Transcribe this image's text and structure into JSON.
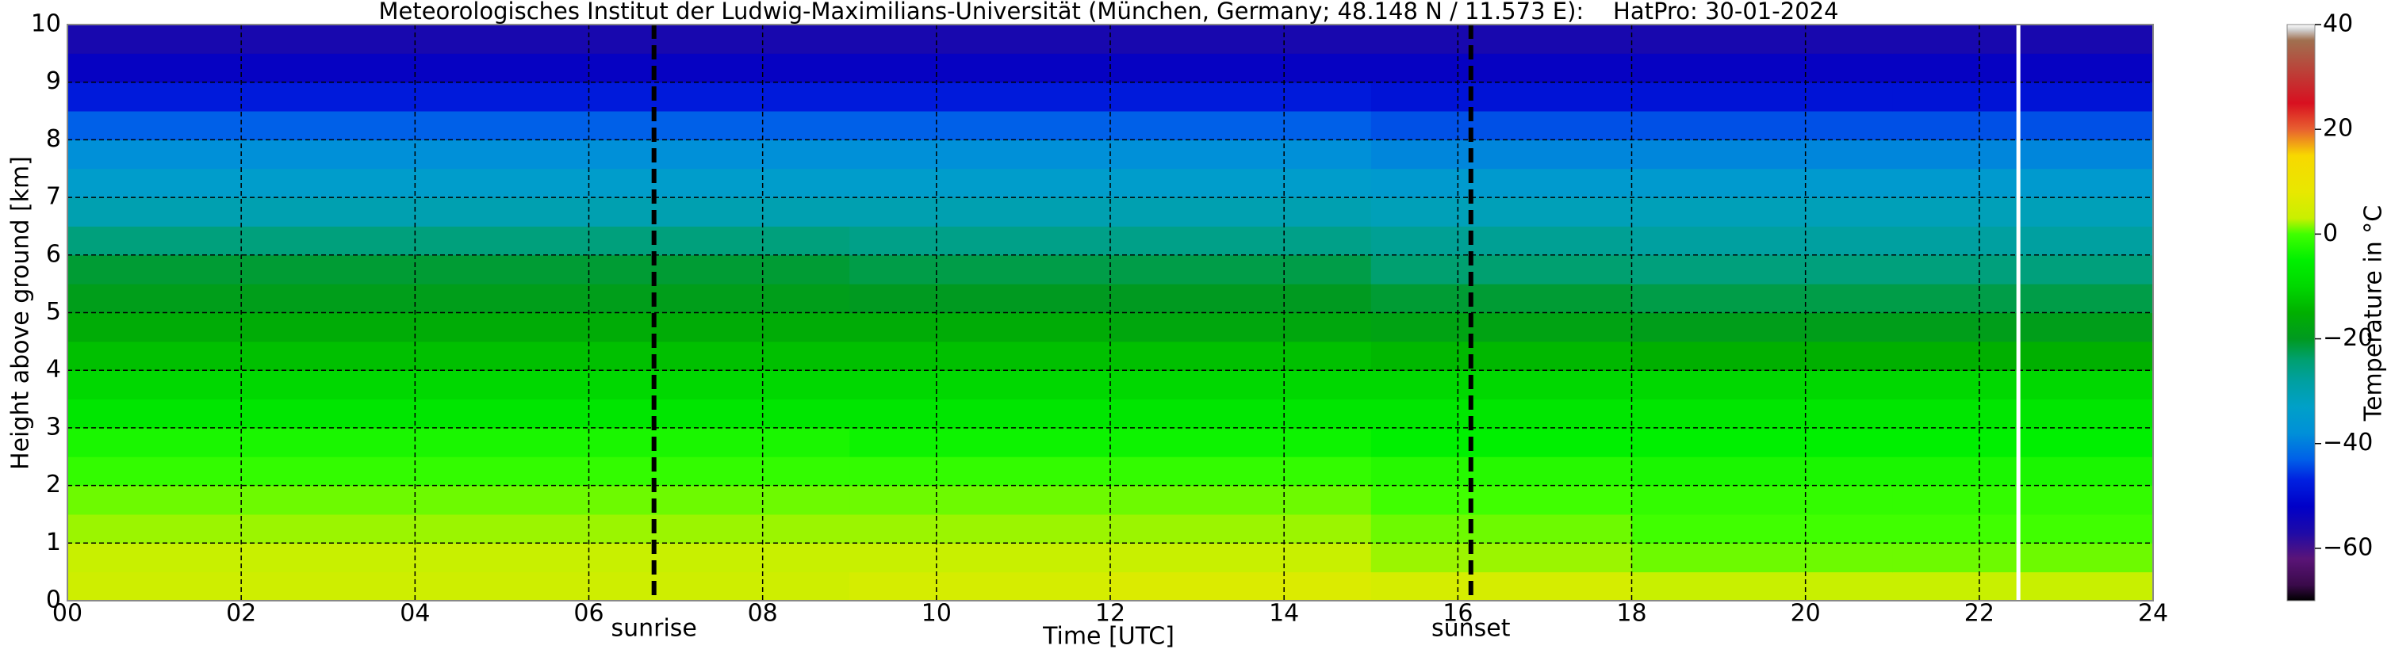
{
  "chart_data": {
    "type": "heatmap",
    "title": "Meteorologisches Institut der Ludwig-Maximilians-Universität (München, Germany; 48.148 N / 11.573 E):    HatPro: 30-01-2024",
    "xlabel": "Time [UTC]",
    "ylabel": "Height above ground [km]",
    "colorbar_label": "Temperature in °C",
    "xlim": [
      0,
      24
    ],
    "ylim": [
      0,
      10
    ],
    "clim": [
      -70,
      40
    ],
    "xticks": [
      {
        "value": 0,
        "label": "00"
      },
      {
        "value": 2,
        "label": "02"
      },
      {
        "value": 4,
        "label": "04"
      },
      {
        "value": 6,
        "label": "06"
      },
      {
        "value": 8,
        "label": "08"
      },
      {
        "value": 10,
        "label": "10"
      },
      {
        "value": 12,
        "label": "12"
      },
      {
        "value": 14,
        "label": "14"
      },
      {
        "value": 16,
        "label": "16"
      },
      {
        "value": 18,
        "label": "18"
      },
      {
        "value": 20,
        "label": "20"
      },
      {
        "value": 22,
        "label": "22"
      },
      {
        "value": 24,
        "label": "24"
      }
    ],
    "yticks": [
      0,
      1,
      2,
      3,
      4,
      5,
      6,
      7,
      8,
      9,
      10
    ],
    "cticks": [
      {
        "value": -60,
        "label": "−60"
      },
      {
        "value": -40,
        "label": "−40"
      },
      {
        "value": -20,
        "label": "−20"
      },
      0,
      20,
      40
    ],
    "grid": true,
    "colorscale": [
      [
        -70,
        "#000000"
      ],
      [
        -67,
        "#3a0a4a"
      ],
      [
        -62,
        "#5a1478"
      ],
      [
        -57,
        "#1e0aa8"
      ],
      [
        -52,
        "#0000c8"
      ],
      [
        -47,
        "#0020e0"
      ],
      [
        -43,
        "#0060e8"
      ],
      [
        -38,
        "#0090d8"
      ],
      [
        -33,
        "#00a0c8"
      ],
      [
        -28,
        "#00a0a0"
      ],
      [
        -24,
        "#00a070"
      ],
      [
        -20,
        "#009a20"
      ],
      [
        -15,
        "#00b000"
      ],
      [
        -10,
        "#00d800"
      ],
      [
        -5,
        "#00f000"
      ],
      [
        0,
        "#40ff00"
      ],
      [
        3,
        "#c8f000"
      ],
      [
        8,
        "#e8e800"
      ],
      [
        15,
        "#f8d800"
      ],
      [
        20,
        "#e86030"
      ],
      [
        25,
        "#d81020"
      ],
      [
        37,
        "#a07050"
      ],
      [
        39,
        "#d0d0d0"
      ],
      [
        40,
        "#ffffff"
      ]
    ],
    "xbins": [
      0,
      3,
      6,
      9,
      12,
      15,
      18,
      21,
      24
    ],
    "ybins": [
      0,
      0.5,
      1,
      1.5,
      2,
      2.5,
      3,
      3.5,
      4,
      4.5,
      5,
      5.5,
      6,
      6.5,
      7,
      7.5,
      8,
      8.5,
      9,
      9.5,
      10
    ],
    "z": [
      [
        4,
        4,
        4,
        5,
        6,
        5,
        3,
        3
      ],
      [
        3,
        3,
        3,
        3,
        3,
        2,
        1,
        1
      ],
      [
        2,
        2,
        2,
        2,
        2,
        1,
        0,
        0
      ],
      [
        1,
        1,
        1,
        1,
        1,
        0,
        -1,
        -1
      ],
      [
        -1,
        -1,
        -1,
        -1,
        -1,
        -2,
        -3,
        -3
      ],
      [
        -3,
        -3,
        -3,
        -4,
        -4,
        -5,
        -5,
        -5
      ],
      [
        -7,
        -7,
        -7,
        -7,
        -7,
        -7,
        -7,
        -7
      ],
      [
        -10,
        -10,
        -10,
        -10,
        -10,
        -10,
        -10,
        -10
      ],
      [
        -13,
        -13,
        -13,
        -13,
        -13,
        -14,
        -15,
        -15
      ],
      [
        -16,
        -16,
        -16,
        -16,
        -17,
        -18,
        -19,
        -19
      ],
      [
        -19,
        -19,
        -19,
        -20,
        -20,
        -21,
        -22,
        -22
      ],
      [
        -21,
        -21,
        -21,
        -22,
        -22,
        -24,
        -25,
        -25
      ],
      [
        -25,
        -25,
        -25,
        -26,
        -26,
        -27,
        -28,
        -28
      ],
      [
        -30,
        -30,
        -30,
        -30,
        -30,
        -31,
        -31,
        -31
      ],
      [
        -34,
        -34,
        -34,
        -34,
        -34,
        -35,
        -35,
        -35
      ],
      [
        -38,
        -38,
        -38,
        -38,
        -38,
        -39,
        -39,
        -39
      ],
      [
        -43,
        -43,
        -43,
        -43,
        -43,
        -44,
        -44,
        -44
      ],
      [
        -48,
        -48,
        -48,
        -48,
        -48,
        -49,
        -49,
        -49
      ],
      [
        -53,
        -53,
        -53,
        -53,
        -53,
        -53,
        -53,
        -53
      ],
      [
        -56,
        -56,
        -56,
        -56,
        -56,
        -56,
        -56,
        -56
      ]
    ],
    "markers": [
      {
        "x": 6.75,
        "label": "sunrise"
      },
      {
        "x": 16.15,
        "label": "sunset"
      }
    ],
    "missing_data_x": 22.45
  }
}
